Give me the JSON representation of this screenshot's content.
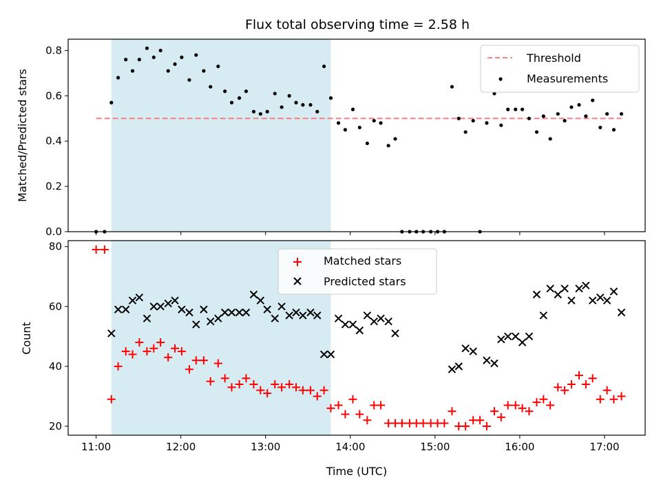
{
  "title": "Flux total observing time = 2.58 h",
  "colors": {
    "shade": "#add8e6",
    "threshold": "#ff7f7f",
    "matched": "#ff0000",
    "predicted": "#000000",
    "measurement": "#000000"
  },
  "chart_data": [
    {
      "type": "scatter",
      "panel": "top",
      "ylabel": "Matched/Predicted stars",
      "ylim": [
        0,
        0.85
      ],
      "yticks": [
        0.0,
        0.2,
        0.4,
        0.6,
        0.8
      ],
      "ytick_labels": [
        "0.0",
        "0.2",
        "0.4",
        "0.6",
        "0.8"
      ],
      "xlim": [
        10.67,
        17.48
      ],
      "xticks": [
        11,
        12,
        13,
        14,
        15,
        16,
        17
      ],
      "shaded_interval": [
        11.18,
        13.77
      ],
      "threshold": {
        "name": "Threshold",
        "y": 0.5,
        "x": [
          11.0,
          17.2
        ]
      },
      "legend": {
        "placement": "upper right",
        "entries": [
          "Threshold",
          "Measurements"
        ]
      },
      "series": [
        {
          "name": "Measurements",
          "marker": "dot",
          "points": [
            [
              11.0,
              0.0
            ],
            [
              11.1,
              0.0
            ],
            [
              11.18,
              0.57
            ],
            [
              11.26,
              0.68
            ],
            [
              11.35,
              0.76
            ],
            [
              11.43,
              0.71
            ],
            [
              11.51,
              0.76
            ],
            [
              11.6,
              0.81
            ],
            [
              11.68,
              0.77
            ],
            [
              11.76,
              0.8
            ],
            [
              11.85,
              0.71
            ],
            [
              11.93,
              0.74
            ],
            [
              12.01,
              0.77
            ],
            [
              12.1,
              0.67
            ],
            [
              12.18,
              0.78
            ],
            [
              12.27,
              0.71
            ],
            [
              12.35,
              0.64
            ],
            [
              12.44,
              0.73
            ],
            [
              12.52,
              0.62
            ],
            [
              12.6,
              0.57
            ],
            [
              12.69,
              0.59
            ],
            [
              12.77,
              0.62
            ],
            [
              12.86,
              0.53
            ],
            [
              12.94,
              0.52
            ],
            [
              13.02,
              0.53
            ],
            [
              13.11,
              0.61
            ],
            [
              13.19,
              0.55
            ],
            [
              13.28,
              0.6
            ],
            [
              13.36,
              0.57
            ],
            [
              13.44,
              0.56
            ],
            [
              13.53,
              0.56
            ],
            [
              13.61,
              0.53
            ],
            [
              13.69,
              0.73
            ],
            [
              13.77,
              0.59
            ],
            [
              13.86,
              0.48
            ],
            [
              13.94,
              0.45
            ],
            [
              14.03,
              0.54
            ],
            [
              14.11,
              0.46
            ],
            [
              14.2,
              0.39
            ],
            [
              14.28,
              0.49
            ],
            [
              14.36,
              0.48
            ],
            [
              14.45,
              0.38
            ],
            [
              14.53,
              0.41
            ],
            [
              14.61,
              0.0
            ],
            [
              14.7,
              0.0
            ],
            [
              14.78,
              0.0
            ],
            [
              14.86,
              0.0
            ],
            [
              14.95,
              0.0
            ],
            [
              15.03,
              0.0
            ],
            [
              15.11,
              0.0
            ],
            [
              15.2,
              0.64
            ],
            [
              15.28,
              0.5
            ],
            [
              15.36,
              0.44
            ],
            [
              15.45,
              0.49
            ],
            [
              15.53,
              0.0
            ],
            [
              15.61,
              0.48
            ],
            [
              15.7,
              0.61
            ],
            [
              15.78,
              0.47
            ],
            [
              15.86,
              0.54
            ],
            [
              15.95,
              0.54
            ],
            [
              16.03,
              0.54
            ],
            [
              16.11,
              0.5
            ],
            [
              16.2,
              0.44
            ],
            [
              16.28,
              0.51
            ],
            [
              16.36,
              0.41
            ],
            [
              16.45,
              0.52
            ],
            [
              16.53,
              0.49
            ],
            [
              16.61,
              0.55
            ],
            [
              16.7,
              0.56
            ],
            [
              16.78,
              0.51
            ],
            [
              16.86,
              0.58
            ],
            [
              16.95,
              0.46
            ],
            [
              17.03,
              0.52
            ],
            [
              17.11,
              0.45
            ],
            [
              17.2,
              0.52
            ]
          ]
        }
      ]
    },
    {
      "type": "scatter",
      "panel": "bottom",
      "xlabel": "Time (UTC)",
      "ylabel": "Count",
      "ylim": [
        17,
        82
      ],
      "yticks": [
        20,
        40,
        60,
        80
      ],
      "ytick_labels": [
        "20",
        "40",
        "60",
        "80"
      ],
      "xlim": [
        10.67,
        17.48
      ],
      "xticks": [
        11,
        12,
        13,
        14,
        15,
        16,
        17
      ],
      "xtick_labels": [
        "11:00",
        "12:00",
        "13:00",
        "14:00",
        "15:00",
        "16:00",
        "17:00"
      ],
      "shaded_interval": [
        11.18,
        13.77
      ],
      "legend": {
        "placement": "upper center",
        "entries": [
          "Matched stars",
          "Predicted stars"
        ]
      },
      "series": [
        {
          "name": "Matched stars",
          "marker": "plus",
          "points": [
            [
              11.0,
              79
            ],
            [
              11.1,
              79
            ],
            [
              11.18,
              29
            ],
            [
              11.26,
              40
            ],
            [
              11.35,
              45
            ],
            [
              11.43,
              44
            ],
            [
              11.51,
              48
            ],
            [
              11.6,
              45
            ],
            [
              11.68,
              46
            ],
            [
              11.76,
              48
            ],
            [
              11.85,
              43
            ],
            [
              11.93,
              46
            ],
            [
              12.01,
              45
            ],
            [
              12.1,
              39
            ],
            [
              12.18,
              42
            ],
            [
              12.27,
              42
            ],
            [
              12.35,
              35
            ],
            [
              12.44,
              41
            ],
            [
              12.52,
              36
            ],
            [
              12.6,
              33
            ],
            [
              12.69,
              34
            ],
            [
              12.77,
              36
            ],
            [
              12.86,
              34
            ],
            [
              12.94,
              32
            ],
            [
              13.02,
              31
            ],
            [
              13.11,
              34
            ],
            [
              13.19,
              33
            ],
            [
              13.28,
              34
            ],
            [
              13.36,
              33
            ],
            [
              13.44,
              32
            ],
            [
              13.53,
              32
            ],
            [
              13.61,
              30
            ],
            [
              13.69,
              32
            ],
            [
              13.77,
              26
            ],
            [
              13.86,
              27
            ],
            [
              13.94,
              24
            ],
            [
              14.03,
              29
            ],
            [
              14.11,
              24
            ],
            [
              14.2,
              22
            ],
            [
              14.28,
              27
            ],
            [
              14.36,
              27
            ],
            [
              14.45,
              21
            ],
            [
              14.53,
              21
            ],
            [
              14.61,
              21
            ],
            [
              14.7,
              21
            ],
            [
              14.78,
              21
            ],
            [
              14.86,
              21
            ],
            [
              14.95,
              21
            ],
            [
              15.03,
              21
            ],
            [
              15.11,
              21
            ],
            [
              15.2,
              25
            ],
            [
              15.28,
              20
            ],
            [
              15.36,
              20
            ],
            [
              15.45,
              22
            ],
            [
              15.53,
              22
            ],
            [
              15.61,
              20
            ],
            [
              15.7,
              25
            ],
            [
              15.78,
              23
            ],
            [
              15.86,
              27
            ],
            [
              15.95,
              27
            ],
            [
              16.03,
              26
            ],
            [
              16.11,
              25
            ],
            [
              16.2,
              28
            ],
            [
              16.28,
              29
            ],
            [
              16.36,
              27
            ],
            [
              16.45,
              33
            ],
            [
              16.53,
              32
            ],
            [
              16.61,
              34
            ],
            [
              16.7,
              37
            ],
            [
              16.78,
              34
            ],
            [
              16.86,
              36
            ],
            [
              16.95,
              29
            ],
            [
              17.03,
              32
            ],
            [
              17.11,
              29
            ],
            [
              17.2,
              30
            ]
          ]
        },
        {
          "name": "Predicted stars",
          "marker": "x",
          "points": [
            [
              11.18,
              51
            ],
            [
              11.26,
              59
            ],
            [
              11.35,
              59
            ],
            [
              11.43,
              62
            ],
            [
              11.51,
              63
            ],
            [
              11.6,
              56
            ],
            [
              11.68,
              60
            ],
            [
              11.76,
              60
            ],
            [
              11.85,
              61
            ],
            [
              11.93,
              62
            ],
            [
              12.01,
              59
            ],
            [
              12.1,
              58
            ],
            [
              12.18,
              54
            ],
            [
              12.27,
              59
            ],
            [
              12.35,
              55
            ],
            [
              12.44,
              56
            ],
            [
              12.52,
              58
            ],
            [
              12.6,
              58
            ],
            [
              12.69,
              58
            ],
            [
              12.77,
              58
            ],
            [
              12.86,
              64
            ],
            [
              12.94,
              62
            ],
            [
              13.02,
              59
            ],
            [
              13.11,
              56
            ],
            [
              13.19,
              60
            ],
            [
              13.28,
              57
            ],
            [
              13.36,
              58
            ],
            [
              13.44,
              57
            ],
            [
              13.53,
              58
            ],
            [
              13.61,
              57
            ],
            [
              13.69,
              44
            ],
            [
              13.77,
              44
            ],
            [
              13.86,
              56
            ],
            [
              13.94,
              54
            ],
            [
              14.03,
              54
            ],
            [
              14.11,
              52
            ],
            [
              14.2,
              57
            ],
            [
              14.28,
              55
            ],
            [
              14.36,
              56
            ],
            [
              14.45,
              55
            ],
            [
              14.53,
              51
            ],
            [
              15.2,
              39
            ],
            [
              15.28,
              40
            ],
            [
              15.36,
              46
            ],
            [
              15.45,
              45
            ],
            [
              15.61,
              42
            ],
            [
              15.7,
              41
            ],
            [
              15.78,
              49
            ],
            [
              15.86,
              50
            ],
            [
              15.95,
              50
            ],
            [
              16.03,
              48
            ],
            [
              16.11,
              50
            ],
            [
              16.2,
              64
            ],
            [
              16.28,
              57
            ],
            [
              16.36,
              66
            ],
            [
              16.45,
              64
            ],
            [
              16.53,
              66
            ],
            [
              16.61,
              62
            ],
            [
              16.7,
              66
            ],
            [
              16.78,
              67
            ],
            [
              16.86,
              62
            ],
            [
              16.95,
              63
            ],
            [
              17.03,
              62
            ],
            [
              17.11,
              65
            ],
            [
              17.2,
              58
            ]
          ]
        }
      ]
    }
  ]
}
